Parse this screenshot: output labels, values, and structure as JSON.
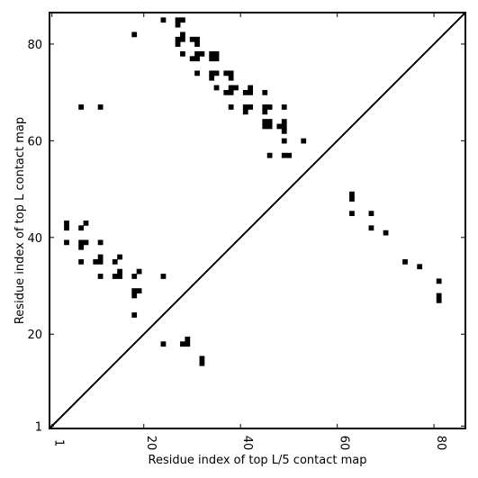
{
  "chart_data": {
    "type": "heatmap",
    "title": "",
    "xlabel": "Residue index of top L/5 contact map",
    "ylabel": "Residue index of top L contact map",
    "xlim": [
      0.5,
      86.5
    ],
    "ylim": [
      0.5,
      86.5
    ],
    "xticks": [
      1,
      20,
      40,
      60,
      80
    ],
    "yticks": [
      1,
      20,
      40,
      60,
      80
    ],
    "grid": false,
    "diagonal": true,
    "cell_color": "#000000",
    "lower_triangle_contacts": [
      [
        63,
        49
      ],
      [
        63,
        48
      ],
      [
        63,
        45
      ],
      [
        67,
        45
      ],
      [
        67,
        42
      ],
      [
        70,
        41
      ],
      [
        74,
        35
      ],
      [
        77,
        34
      ],
      [
        81,
        31
      ],
      [
        81,
        28
      ],
      [
        81,
        27
      ]
    ],
    "upper_triangle_contacts": [
      [
        18,
        82
      ],
      [
        24,
        85
      ],
      [
        27,
        85
      ],
      [
        28,
        85
      ],
      [
        27,
        84
      ],
      [
        27,
        81
      ],
      [
        28,
        82
      ],
      [
        28,
        81
      ],
      [
        27,
        80
      ],
      [
        30,
        81
      ],
      [
        31,
        81
      ],
      [
        31,
        80
      ],
      [
        28,
        78
      ],
      [
        30,
        77
      ],
      [
        31,
        77
      ],
      [
        31,
        78
      ],
      [
        32,
        78
      ],
      [
        34,
        78
      ],
      [
        35,
        78
      ],
      [
        34,
        77
      ],
      [
        35,
        77
      ],
      [
        31,
        74
      ],
      [
        34,
        74
      ],
      [
        35,
        74
      ],
      [
        34,
        73
      ],
      [
        37,
        74
      ],
      [
        38,
        74
      ],
      [
        38,
        73
      ],
      [
        35,
        71
      ],
      [
        38,
        71
      ],
      [
        39,
        71
      ],
      [
        37,
        70
      ],
      [
        38,
        70
      ],
      [
        41,
        70
      ],
      [
        42,
        70
      ],
      [
        42,
        71
      ],
      [
        45,
        70
      ],
      [
        7,
        67
      ],
      [
        11,
        67
      ],
      [
        38,
        67
      ],
      [
        41,
        67
      ],
      [
        42,
        67
      ],
      [
        41,
        66
      ],
      [
        45,
        67
      ],
      [
        46,
        67
      ],
      [
        45,
        66
      ],
      [
        49,
        67
      ],
      [
        45,
        64
      ],
      [
        46,
        64
      ],
      [
        45,
        63
      ],
      [
        46,
        63
      ],
      [
        48,
        63
      ],
      [
        49,
        63
      ],
      [
        49,
        64
      ],
      [
        49,
        62
      ],
      [
        49,
        60
      ],
      [
        53,
        60
      ],
      [
        46,
        57
      ],
      [
        49,
        57
      ],
      [
        50,
        57
      ],
      [
        4,
        43
      ],
      [
        4,
        42
      ],
      [
        7,
        42
      ],
      [
        8,
        43
      ],
      [
        4,
        39
      ],
      [
        7,
        39
      ],
      [
        8,
        39
      ],
      [
        7,
        38
      ],
      [
        11,
        39
      ],
      [
        7,
        35
      ],
      [
        10,
        35
      ],
      [
        11,
        35
      ],
      [
        11,
        36
      ],
      [
        14,
        35
      ],
      [
        15,
        36
      ],
      [
        15,
        33
      ],
      [
        14,
        32
      ],
      [
        15,
        32
      ],
      [
        11,
        32
      ],
      [
        18,
        32
      ],
      [
        19,
        33
      ],
      [
        24,
        32
      ],
      [
        18,
        29
      ],
      [
        19,
        29
      ],
      [
        18,
        28
      ],
      [
        18,
        24
      ],
      [
        24,
        18
      ],
      [
        28,
        18
      ],
      [
        29,
        18
      ],
      [
        29,
        19
      ],
      [
        32,
        15
      ],
      [
        32,
        14
      ]
    ]
  }
}
